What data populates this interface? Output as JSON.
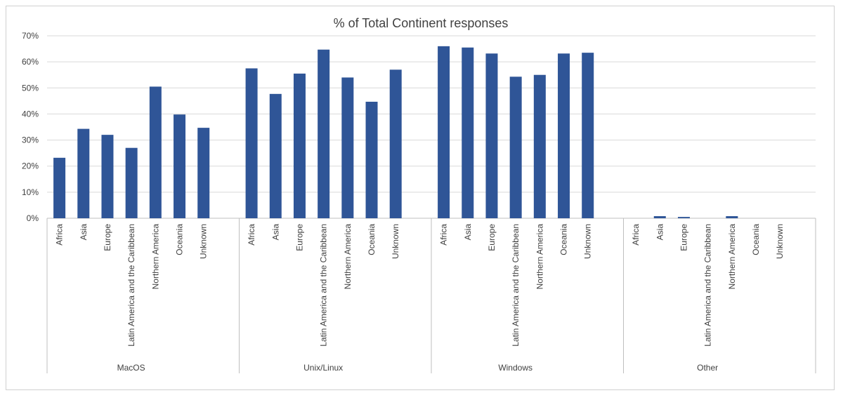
{
  "chart_data": {
    "type": "bar",
    "title": "% of Total Continent responses",
    "xlabel": "",
    "ylabel": "",
    "ylim": [
      0,
      0.7
    ],
    "y_ticks": [
      "0%",
      "10%",
      "20%",
      "30%",
      "40%",
      "50%",
      "60%",
      "70%"
    ],
    "grid": true,
    "legend": "none",
    "color": "#2F5597",
    "groups": [
      {
        "name": "MacOS",
        "categories": [
          "Africa",
          "Asia",
          "Europe",
          "Latin America and the Caribbean",
          "Northern America",
          "Oceania",
          "Unknown"
        ],
        "values": [
          0.232,
          0.343,
          0.32,
          0.27,
          0.505,
          0.398,
          0.347
        ]
      },
      {
        "name": "Unix/Linux",
        "categories": [
          "Africa",
          "Asia",
          "Europe",
          "Latin America and the Caribbean",
          "Northern America",
          "Oceania",
          "Unknown"
        ],
        "values": [
          0.575,
          0.477,
          0.555,
          0.647,
          0.54,
          0.447,
          0.57
        ]
      },
      {
        "name": "Windows",
        "categories": [
          "Africa",
          "Asia",
          "Europe",
          "Latin America and the Caribbean",
          "Northern America",
          "Oceania",
          "Unknown"
        ],
        "values": [
          0.66,
          0.655,
          0.632,
          0.543,
          0.55,
          0.632,
          0.635
        ]
      },
      {
        "name": "Other",
        "categories": [
          "Africa",
          "Asia",
          "Europe",
          "Latin America and the Caribbean",
          "Northern America",
          "Oceania",
          "Unknown"
        ],
        "values": [
          0.0,
          0.008,
          0.005,
          0.0,
          0.008,
          0.0,
          0.0
        ]
      }
    ]
  }
}
